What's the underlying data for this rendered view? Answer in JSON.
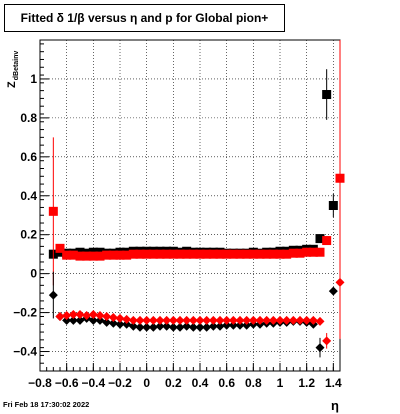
{
  "title": "Fitted δ 1/β versus η and p for Global pion+",
  "footer": "Fri Feb 18 17:30:02 2022",
  "chart_data": {
    "type": "scatter",
    "title": "Fitted δ 1/β versus η and p for Global pion+",
    "xlabel": "η",
    "ylabel_main": "Z",
    "ylabel_sub": "dBetainv",
    "xlim": [
      -0.8,
      1.45
    ],
    "ylim": [
      -0.5,
      1.2
    ],
    "xticks": [
      -0.8,
      -0.6,
      -0.4,
      -0.2,
      0,
      0.2,
      0.4,
      0.6,
      0.8,
      1,
      1.2,
      1.4
    ],
    "xtick_labels": [
      "−0.8",
      "−0.6",
      "−0.4",
      "−0.2",
      "0",
      "0.2",
      "0.4",
      "0.6",
      "0.8",
      "1",
      "1.2",
      "1.4"
    ],
    "yticks": [
      -0.4,
      -0.2,
      0,
      0.2,
      0.4,
      0.6,
      0.8,
      1
    ],
    "ytick_labels": [
      "−0.4",
      "−0.2",
      "0",
      "0.2",
      "0.4",
      "0.6",
      "0.8",
      "1"
    ],
    "grid": true,
    "colors": {
      "black": "#000000",
      "red": "#ff0000"
    },
    "series": [
      {
        "marker": "square",
        "color": "#000000",
        "points": [
          [
            -0.7,
            0.1,
            0.01
          ],
          [
            -0.65,
            0.11,
            0.01
          ],
          [
            -0.6,
            0.105,
            0.01
          ],
          [
            -0.55,
            0.105,
            0.01
          ],
          [
            -0.5,
            0.11,
            0.01
          ],
          [
            -0.45,
            0.105,
            0.01
          ],
          [
            -0.4,
            0.11,
            0.01
          ],
          [
            -0.35,
            0.11,
            0.01
          ],
          [
            -0.3,
            0.105,
            0.01
          ],
          [
            -0.25,
            0.105,
            0.01
          ],
          [
            -0.2,
            0.11,
            0.01
          ],
          [
            -0.15,
            0.11,
            0.01
          ],
          [
            -0.1,
            0.115,
            0.01
          ],
          [
            -0.05,
            0.115,
            0.01
          ],
          [
            0,
            0.115,
            0.01
          ],
          [
            0.05,
            0.115,
            0.01
          ],
          [
            0.1,
            0.115,
            0.01
          ],
          [
            0.15,
            0.115,
            0.01
          ],
          [
            0.2,
            0.115,
            0.01
          ],
          [
            0.25,
            0.11,
            0.01
          ],
          [
            0.3,
            0.115,
            0.01
          ],
          [
            0.35,
            0.11,
            0.01
          ],
          [
            0.4,
            0.11,
            0.01
          ],
          [
            0.45,
            0.11,
            0.01
          ],
          [
            0.5,
            0.11,
            0.01
          ],
          [
            0.55,
            0.11,
            0.01
          ],
          [
            0.6,
            0.105,
            0.01
          ],
          [
            0.65,
            0.105,
            0.01
          ],
          [
            0.7,
            0.105,
            0.01
          ],
          [
            0.75,
            0.105,
            0.01
          ],
          [
            0.8,
            0.11,
            0.01
          ],
          [
            0.85,
            0.105,
            0.01
          ],
          [
            0.9,
            0.11,
            0.01
          ],
          [
            0.95,
            0.11,
            0.01
          ],
          [
            1.0,
            0.115,
            0.01
          ],
          [
            1.05,
            0.115,
            0.01
          ],
          [
            1.1,
            0.12,
            0.01
          ],
          [
            1.15,
            0.12,
            0.01
          ],
          [
            1.2,
            0.125,
            0.01
          ],
          [
            1.25,
            0.125,
            0.01
          ],
          [
            1.3,
            0.18,
            0.02
          ],
          [
            1.35,
            0.92,
            0.13
          ],
          [
            1.4,
            0.35,
            0.06
          ]
        ]
      },
      {
        "marker": "square",
        "color": "#ff0000",
        "points": [
          [
            -0.7,
            0.32,
            0.38
          ],
          [
            -0.65,
            0.13,
            0.02
          ],
          [
            -0.6,
            0.095,
            0.01
          ],
          [
            -0.55,
            0.095,
            0.01
          ],
          [
            -0.5,
            0.09,
            0.01
          ],
          [
            -0.45,
            0.09,
            0.01
          ],
          [
            -0.4,
            0.09,
            0.01
          ],
          [
            -0.35,
            0.09,
            0.01
          ],
          [
            -0.3,
            0.095,
            0.01
          ],
          [
            -0.25,
            0.095,
            0.01
          ],
          [
            -0.2,
            0.095,
            0.01
          ],
          [
            -0.15,
            0.095,
            0.01
          ],
          [
            -0.1,
            0.1,
            0.01
          ],
          [
            -0.05,
            0.1,
            0.01
          ],
          [
            0,
            0.1,
            0.01
          ],
          [
            0.05,
            0.1,
            0.01
          ],
          [
            0.1,
            0.1,
            0.01
          ],
          [
            0.15,
            0.1,
            0.01
          ],
          [
            0.2,
            0.1,
            0.01
          ],
          [
            0.25,
            0.1,
            0.01
          ],
          [
            0.3,
            0.1,
            0.01
          ],
          [
            0.35,
            0.1,
            0.01
          ],
          [
            0.4,
            0.1,
            0.01
          ],
          [
            0.45,
            0.1,
            0.01
          ],
          [
            0.5,
            0.1,
            0.01
          ],
          [
            0.55,
            0.1,
            0.01
          ],
          [
            0.6,
            0.1,
            0.01
          ],
          [
            0.65,
            0.1,
            0.01
          ],
          [
            0.7,
            0.1,
            0.01
          ],
          [
            0.75,
            0.1,
            0.01
          ],
          [
            0.8,
            0.1,
            0.01
          ],
          [
            0.85,
            0.1,
            0.01
          ],
          [
            0.9,
            0.1,
            0.01
          ],
          [
            0.95,
            0.1,
            0.01
          ],
          [
            1.0,
            0.1,
            0.01
          ],
          [
            1.05,
            0.1,
            0.01
          ],
          [
            1.1,
            0.105,
            0.01
          ],
          [
            1.15,
            0.105,
            0.01
          ],
          [
            1.2,
            0.11,
            0.01
          ],
          [
            1.25,
            0.11,
            0.01
          ],
          [
            1.3,
            0.11,
            0.01
          ],
          [
            1.35,
            0.17,
            0.02
          ],
          [
            1.45,
            0.49,
            0.8
          ]
        ]
      },
      {
        "marker": "diamond",
        "color": "#000000",
        "points": [
          [
            -0.7,
            -0.11,
            0.12
          ],
          [
            -0.65,
            -0.22,
            0.01
          ],
          [
            -0.6,
            -0.24,
            0.01
          ],
          [
            -0.55,
            -0.24,
            0.01
          ],
          [
            -0.5,
            -0.24,
            0.01
          ],
          [
            -0.45,
            -0.23,
            0.01
          ],
          [
            -0.4,
            -0.24,
            0.01
          ],
          [
            -0.35,
            -0.24,
            0.01
          ],
          [
            -0.3,
            -0.25,
            0.01
          ],
          [
            -0.25,
            -0.255,
            0.01
          ],
          [
            -0.2,
            -0.26,
            0.01
          ],
          [
            -0.15,
            -0.26,
            0.01
          ],
          [
            -0.1,
            -0.27,
            0.01
          ],
          [
            -0.05,
            -0.275,
            0.01
          ],
          [
            0,
            -0.275,
            0.01
          ],
          [
            0.05,
            -0.275,
            0.01
          ],
          [
            0.1,
            -0.27,
            0.01
          ],
          [
            0.15,
            -0.27,
            0.01
          ],
          [
            0.2,
            -0.275,
            0.01
          ],
          [
            0.25,
            -0.275,
            0.01
          ],
          [
            0.3,
            -0.27,
            0.01
          ],
          [
            0.35,
            -0.275,
            0.01
          ],
          [
            0.4,
            -0.275,
            0.01
          ],
          [
            0.45,
            -0.275,
            0.01
          ],
          [
            0.5,
            -0.27,
            0.01
          ],
          [
            0.55,
            -0.27,
            0.01
          ],
          [
            0.6,
            -0.265,
            0.01
          ],
          [
            0.65,
            -0.265,
            0.01
          ],
          [
            0.7,
            -0.265,
            0.01
          ],
          [
            0.75,
            -0.265,
            0.01
          ],
          [
            0.8,
            -0.26,
            0.01
          ],
          [
            0.85,
            -0.26,
            0.01
          ],
          [
            0.9,
            -0.255,
            0.01
          ],
          [
            0.95,
            -0.255,
            0.01
          ],
          [
            1.0,
            -0.25,
            0.01
          ],
          [
            1.05,
            -0.25,
            0.01
          ],
          [
            1.1,
            -0.245,
            0.01
          ],
          [
            1.15,
            -0.245,
            0.01
          ],
          [
            1.2,
            -0.25,
            0.01
          ],
          [
            1.25,
            -0.26,
            0.01
          ],
          [
            1.3,
            -0.38,
            0.05
          ],
          [
            1.4,
            -0.09,
            0.01
          ]
        ]
      },
      {
        "marker": "diamond",
        "color": "#ff0000",
        "points": [
          [
            -0.65,
            -0.22,
            0.01
          ],
          [
            -0.6,
            -0.215,
            0.01
          ],
          [
            -0.55,
            -0.21,
            0.01
          ],
          [
            -0.5,
            -0.21,
            0.01
          ],
          [
            -0.45,
            -0.215,
            0.01
          ],
          [
            -0.4,
            -0.21,
            0.01
          ],
          [
            -0.35,
            -0.215,
            0.01
          ],
          [
            -0.3,
            -0.22,
            0.01
          ],
          [
            -0.25,
            -0.225,
            0.01
          ],
          [
            -0.2,
            -0.23,
            0.01
          ],
          [
            -0.15,
            -0.235,
            0.01
          ],
          [
            -0.1,
            -0.24,
            0.01
          ],
          [
            -0.05,
            -0.24,
            0.01
          ],
          [
            0,
            -0.24,
            0.01
          ],
          [
            0.05,
            -0.24,
            0.01
          ],
          [
            0.1,
            -0.24,
            0.01
          ],
          [
            0.15,
            -0.24,
            0.01
          ],
          [
            0.2,
            -0.24,
            0.01
          ],
          [
            0.25,
            -0.24,
            0.01
          ],
          [
            0.3,
            -0.24,
            0.01
          ],
          [
            0.35,
            -0.24,
            0.01
          ],
          [
            0.4,
            -0.24,
            0.01
          ],
          [
            0.45,
            -0.24,
            0.01
          ],
          [
            0.5,
            -0.24,
            0.01
          ],
          [
            0.55,
            -0.24,
            0.01
          ],
          [
            0.6,
            -0.24,
            0.01
          ],
          [
            0.65,
            -0.24,
            0.01
          ],
          [
            0.7,
            -0.24,
            0.01
          ],
          [
            0.75,
            -0.24,
            0.01
          ],
          [
            0.8,
            -0.24,
            0.01
          ],
          [
            0.85,
            -0.24,
            0.01
          ],
          [
            0.9,
            -0.24,
            0.01
          ],
          [
            0.95,
            -0.24,
            0.01
          ],
          [
            1.0,
            -0.24,
            0.01
          ],
          [
            1.05,
            -0.24,
            0.01
          ],
          [
            1.1,
            -0.24,
            0.01
          ],
          [
            1.15,
            -0.24,
            0.01
          ],
          [
            1.2,
            -0.24,
            0.01
          ],
          [
            1.25,
            -0.24,
            0.01
          ],
          [
            1.3,
            -0.245,
            0.01
          ],
          [
            1.35,
            -0.345,
            0.04
          ],
          [
            1.45,
            -0.045,
            0.29
          ]
        ]
      }
    ]
  }
}
